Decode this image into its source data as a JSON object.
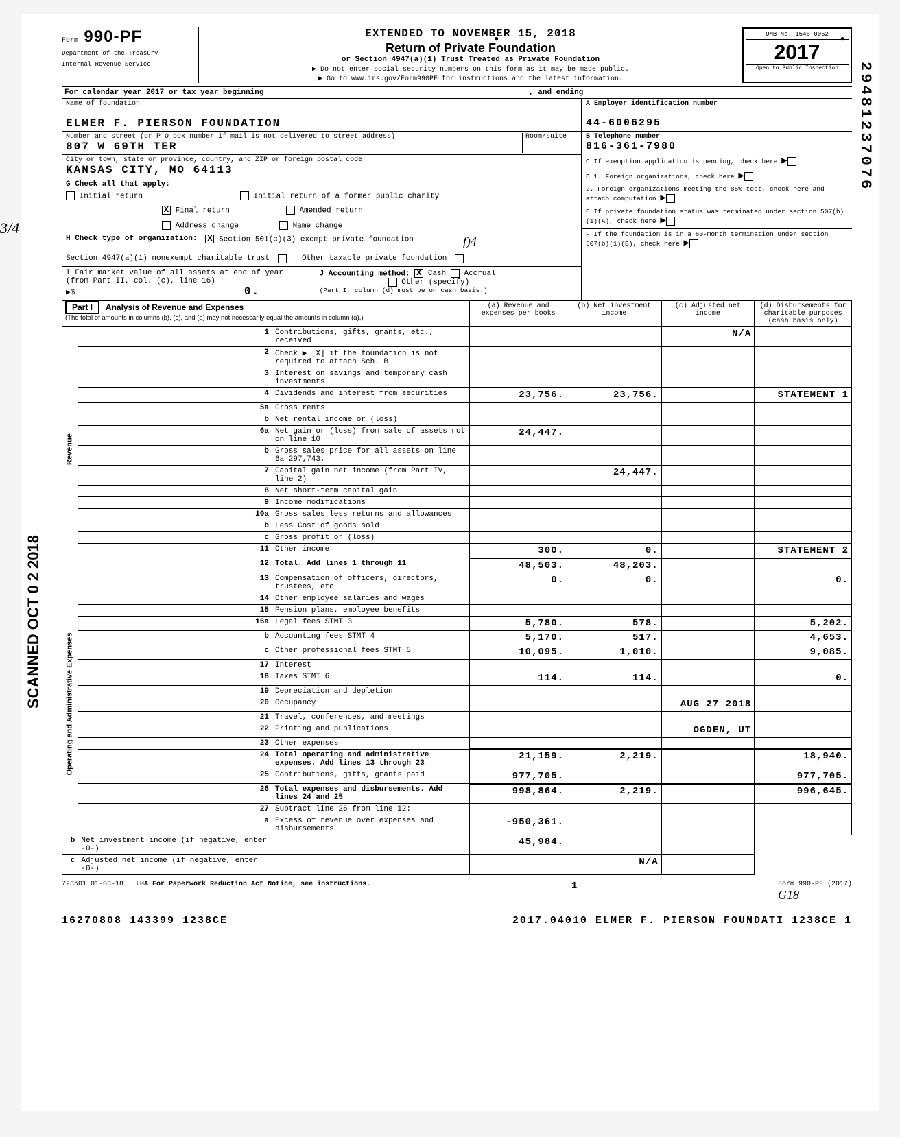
{
  "header": {
    "form_no": "990-PF",
    "form_prefix": "Form",
    "dept1": "Department of the Treasury",
    "dept2": "Internal Revenue Service",
    "extended_to": "EXTENDED TO NOVEMBER 15, 2018",
    "title": "Return of Private Foundation",
    "subtitle": "or Section 4947(a)(1) Trust Treated as Private Foundation",
    "instr1": "▶ Do not enter social security numbers on this form as it may be made public.",
    "instr2": "▶ Go to www.irs.gov/Form990PF for instructions and the latest information.",
    "omb": "OMB No. 1545-0052",
    "year": "2017",
    "inspect": "Open to Public Inspection",
    "top_right_dot1": "●",
    "top_right_dot2": "●"
  },
  "vertical_number": "29481237076",
  "calendar_row": {
    "label": "For calendar year 2017 or tax year beginning",
    "ending": ", and ending"
  },
  "name_block": {
    "label": "Name of foundation",
    "value": "ELMER F. PIERSON FOUNDATION",
    "addr_label": "Number and street (or P O  box number if mail is not delivered to street address)",
    "addr_value": "807 W 69TH TER",
    "room_label": "Room/suite",
    "city_label": "City or town, state or province, country, and ZIP or foreign postal code",
    "city_value": "KANSAS CITY, MO  64113"
  },
  "right_block": {
    "a": "A  Employer identification number",
    "ein": "44-6006295",
    "b": "B  Telephone number",
    "phone": "816-361-7980",
    "c": "C  If exemption application is pending, check here",
    "d1": "D  1. Foreign organizations, check here",
    "d2": "2. Foreign organizations meeting the 85% test, check here and attach computation",
    "e": "E  If private foundation status was terminated under section 507(b)(1)(A), check here",
    "f": "F  If the foundation is in a 60-month termination under section 507(b)(1)(B), check here"
  },
  "g_check": {
    "label": "G  Check all that apply:",
    "opts": [
      "Initial return",
      "Final return",
      "Address change",
      "Initial return of a former public charity",
      "Amended return",
      "Name change"
    ]
  },
  "h_check": {
    "label": "H  Check type of organization:",
    "opt1": "Section 501(c)(3) exempt private foundation",
    "opt2": "Section 4947(a)(1) nonexempt charitable trust",
    "opt3": "Other taxable private foundation",
    "hand": "f)4"
  },
  "i_block": {
    "label": "I  Fair market value of all assets at end of year (from Part II, col. (c), line 16)",
    "sym": "▶$",
    "val": "0."
  },
  "j_block": {
    "label": "J  Accounting method:",
    "opts": [
      "Cash",
      "Accrual",
      "Other (specify)"
    ],
    "note": "(Part I, column (d) must be on cash basis.)"
  },
  "part1": {
    "label": "Part I",
    "title": "Analysis of Revenue and Expenses",
    "sub": "(The total of amounts in columns (b), (c), and (d) may not necessarily equal the amounts in column (a).)",
    "cols": {
      "a": "(a) Revenue and expenses per books",
      "b": "(b) Net investment income",
      "c": "(c) Adjusted net income",
      "d": "(d) Disbursements for charitable purposes (cash basis only)"
    }
  },
  "side_labels": {
    "revenue": "Revenue",
    "op_admin": "Operating and Administrative Expenses"
  },
  "rows": [
    {
      "n": "1",
      "d": "Contributions, gifts, grants, etc., received",
      "a": "",
      "b": "",
      "c": "N/A",
      "dd": ""
    },
    {
      "n": "2",
      "d": "Check ▶ [X] if the foundation is not required to attach Sch. B",
      "a": "",
      "b": "",
      "c": "",
      "dd": ""
    },
    {
      "n": "3",
      "d": "Interest on savings and temporary cash investments",
      "a": "",
      "b": "",
      "c": "",
      "dd": ""
    },
    {
      "n": "4",
      "d": "Dividends and interest from securities",
      "a": "23,756.",
      "b": "23,756.",
      "c": "",
      "dd": "STATEMENT 1"
    },
    {
      "n": "5a",
      "d": "Gross rents",
      "a": "",
      "b": "",
      "c": "",
      "dd": ""
    },
    {
      "n": "b",
      "d": "Net rental income or (loss)",
      "a": "",
      "b": "",
      "c": "",
      "dd": ""
    },
    {
      "n": "6a",
      "d": "Net gain or (loss) from sale of assets not on line 10",
      "a": "24,447.",
      "b": "",
      "c": "",
      "dd": ""
    },
    {
      "n": "b",
      "d": "Gross sales price for all assets on line 6a     297,743.",
      "a": "",
      "b": "",
      "c": "",
      "dd": ""
    },
    {
      "n": "7",
      "d": "Capital gain net income (from Part IV, line 2)",
      "a": "",
      "b": "24,447.",
      "c": "",
      "dd": ""
    },
    {
      "n": "8",
      "d": "Net short-term capital gain",
      "a": "",
      "b": "",
      "c": "",
      "dd": ""
    },
    {
      "n": "9",
      "d": "Income modifications",
      "a": "",
      "b": "",
      "c": "",
      "dd": ""
    },
    {
      "n": "10a",
      "d": "Gross sales less returns and allowances",
      "a": "",
      "b": "",
      "c": "",
      "dd": ""
    },
    {
      "n": "b",
      "d": "Less  Cost of goods sold",
      "a": "",
      "b": "",
      "c": "",
      "dd": ""
    },
    {
      "n": "c",
      "d": "Gross profit or (loss)",
      "a": "",
      "b": "",
      "c": "",
      "dd": ""
    },
    {
      "n": "11",
      "d": "Other income",
      "a": "300.",
      "b": "0.",
      "c": "",
      "dd": "STATEMENT 2"
    },
    {
      "n": "12",
      "d": "Total. Add lines 1 through 11",
      "a": "48,503.",
      "b": "48,203.",
      "c": "",
      "dd": "",
      "bold": true
    },
    {
      "n": "13",
      "d": "Compensation of officers, directors, trustees, etc",
      "a": "0.",
      "b": "0.",
      "c": "",
      "dd": "0."
    },
    {
      "n": "14",
      "d": "Other employee salaries and wages",
      "a": "",
      "b": "",
      "c": "",
      "dd": ""
    },
    {
      "n": "15",
      "d": "Pension plans, employee benefits",
      "a": "",
      "b": "",
      "c": "",
      "dd": ""
    },
    {
      "n": "16a",
      "d": "Legal fees                    STMT 3",
      "a": "5,780.",
      "b": "578.",
      "c": "",
      "dd": "5,202."
    },
    {
      "n": "b",
      "d": "Accounting fees               STMT 4",
      "a": "5,170.",
      "b": "517.",
      "c": "",
      "dd": "4,653."
    },
    {
      "n": "c",
      "d": "Other professional fees       STMT 5",
      "a": "10,095.",
      "b": "1,010.",
      "c": "",
      "dd": "9,085."
    },
    {
      "n": "17",
      "d": "Interest",
      "a": "",
      "b": "",
      "c": "",
      "dd": ""
    },
    {
      "n": "18",
      "d": "Taxes                         STMT 6",
      "a": "114.",
      "b": "114.",
      "c": "",
      "dd": "0."
    },
    {
      "n": "19",
      "d": "Depreciation and depletion",
      "a": "",
      "b": "",
      "c": "",
      "dd": ""
    },
    {
      "n": "20",
      "d": "Occupancy",
      "a": "",
      "b": "",
      "c": "AUG 27 2018",
      "dd": ""
    },
    {
      "n": "21",
      "d": "Travel, conferences, and meetings",
      "a": "",
      "b": "",
      "c": "",
      "dd": ""
    },
    {
      "n": "22",
      "d": "Printing and publications",
      "a": "",
      "b": "",
      "c": "OGDEN, UT",
      "dd": ""
    },
    {
      "n": "23",
      "d": "Other expenses",
      "a": "",
      "b": "",
      "c": "",
      "dd": ""
    },
    {
      "n": "24",
      "d": "Total operating and administrative expenses. Add lines 13 through 23",
      "a": "21,159.",
      "b": "2,219.",
      "c": "",
      "dd": "18,940.",
      "bold": true
    },
    {
      "n": "25",
      "d": "Contributions, gifts, grants paid",
      "a": "977,705.",
      "b": "",
      "c": "",
      "dd": "977,705."
    },
    {
      "n": "26",
      "d": "Total expenses and disbursements. Add lines 24 and 25",
      "a": "998,864.",
      "b": "2,219.",
      "c": "",
      "dd": "996,645.",
      "bold": true
    },
    {
      "n": "27",
      "d": "Subtract line 26 from line 12:",
      "a": "",
      "b": "",
      "c": "",
      "dd": ""
    },
    {
      "n": "a",
      "d": "Excess of revenue over expenses and disbursements",
      "a": "-950,361.",
      "b": "",
      "c": "",
      "dd": ""
    },
    {
      "n": "b",
      "d": "Net investment income (if negative, enter -0-)",
      "a": "",
      "b": "45,984.",
      "c": "",
      "dd": ""
    },
    {
      "n": "c",
      "d": "Adjusted net income (if negative, enter -0-)",
      "a": "",
      "b": "",
      "c": "N/A",
      "dd": ""
    }
  ],
  "footer": {
    "code": "723501  01-03-18",
    "lha": "LHA  For Paperwork Reduction Act Notice, see instructions.",
    "page": "1",
    "form": "Form 990-PF (2017)",
    "hand": "G18"
  },
  "bottom": {
    "left": "16270808 143399 1238CE",
    "right": "2017.04010 ELMER F. PIERSON FOUNDATI 1238CE_1"
  },
  "left_stamp": "SCANNED OCT 0 2 2018",
  "left_margin": "3/4"
}
